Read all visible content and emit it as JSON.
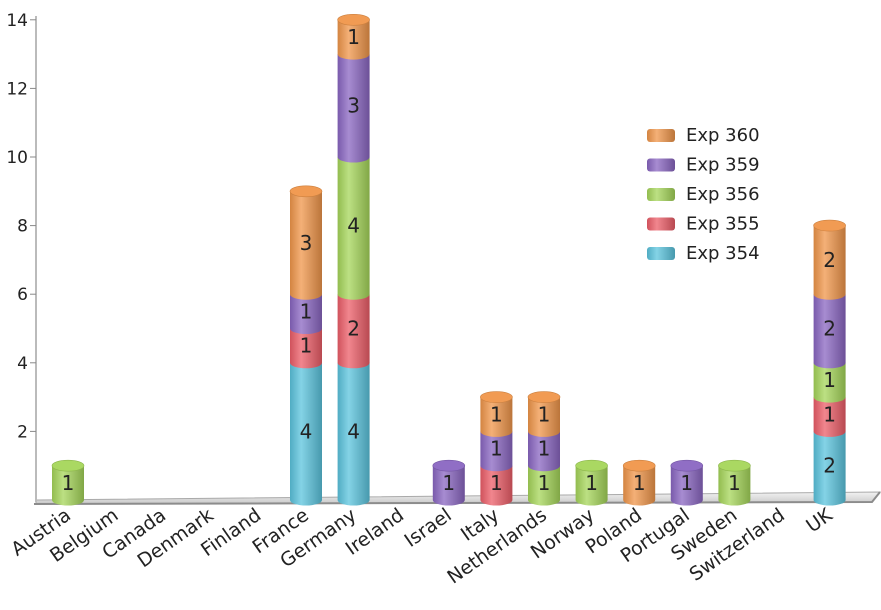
{
  "chart_data": {
    "type": "bar",
    "stacked": true,
    "title": "",
    "xlabel": "",
    "ylabel": "",
    "ylim": [
      0,
      14
    ],
    "y_ticks": [
      "2",
      "4",
      "6",
      "8",
      "10",
      "12",
      "14"
    ],
    "grid": false,
    "legend_position": "right",
    "categories": [
      "Austria",
      "Belgium",
      "Canada",
      "Denmark",
      "Finland",
      "France",
      "Germany",
      "Ireland",
      "Israel",
      "Italy",
      "Netherlands",
      "Norway",
      "Poland",
      "Portugal",
      "Sweden",
      "Switzerland",
      "UK"
    ],
    "series": [
      {
        "name": "Exp 354",
        "color": "#5bc4de",
        "values": [
          0,
          0,
          0,
          0,
          0,
          4,
          4,
          0,
          0,
          0,
          0,
          0,
          0,
          0,
          0,
          0,
          2
        ]
      },
      {
        "name": "Exp 355",
        "color": "#ec5d68",
        "values": [
          0,
          0,
          0,
          0,
          0,
          1,
          2,
          0,
          0,
          1,
          0,
          0,
          0,
          0,
          0,
          0,
          1
        ]
      },
      {
        "name": "Exp 356",
        "color": "#a6d65a",
        "values": [
          1,
          0,
          0,
          0,
          0,
          0,
          4,
          0,
          0,
          0,
          1,
          1,
          0,
          0,
          1,
          0,
          1
        ]
      },
      {
        "name": "Exp 359",
        "color": "#8a66c2",
        "values": [
          0,
          0,
          0,
          0,
          0,
          1,
          3,
          0,
          1,
          1,
          1,
          0,
          0,
          1,
          0,
          0,
          2
        ]
      },
      {
        "name": "Exp 360",
        "color": "#f0964a",
        "values": [
          0,
          0,
          0,
          0,
          0,
          3,
          1,
          0,
          0,
          1,
          1,
          0,
          1,
          0,
          0,
          0,
          2
        ]
      }
    ]
  }
}
